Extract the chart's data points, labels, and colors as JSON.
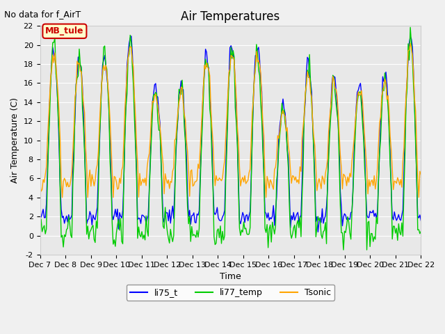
{
  "title": "Air Temperatures",
  "no_data_text": "No data for f_AirT",
  "annotation_text": "MB_tule",
  "xlabel": "Time",
  "ylabel": "Air Temperature (C)",
  "ylim": [
    -2,
    22
  ],
  "yticks": [
    -2,
    0,
    2,
    4,
    6,
    8,
    10,
    12,
    14,
    16,
    18,
    20,
    22
  ],
  "xlim": [
    0,
    360
  ],
  "xtick_labels": [
    "Dec 7",
    "Dec 8",
    "Dec 9",
    "Dec 10",
    "Dec 11",
    "Dec 12",
    "Dec 13",
    "Dec 14",
    "Dec 15",
    "Dec 16",
    "Dec 17",
    "Dec 18",
    "Dec 19",
    "Dec 20",
    "Dec 21",
    "Dec 22"
  ],
  "xtick_positions": [
    0,
    24,
    48,
    72,
    96,
    120,
    144,
    168,
    192,
    216,
    240,
    264,
    288,
    312,
    336,
    360
  ],
  "line_colors": {
    "li75_t": "#0000ff",
    "li77_temp": "#00cc00",
    "Tsonic": "#ffa500"
  },
  "legend_labels": [
    "li75_t",
    "li77_temp",
    "Tsonic"
  ],
  "background_color": "#e8e8e8",
  "figure_background": "#f0f0f0",
  "annotation_bg": "#ffffcc",
  "annotation_border": "#cc0000",
  "annotation_text_color": "#cc0000"
}
